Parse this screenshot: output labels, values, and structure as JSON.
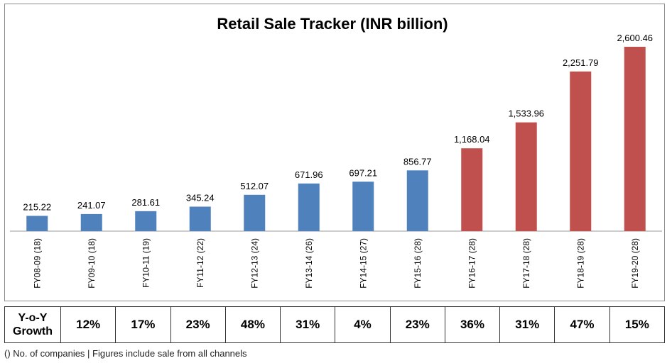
{
  "chart_data": {
    "type": "bar",
    "title": "Retail Sale Tracker (INR billion)",
    "categories": [
      "FY08-09 (18)",
      "FY09-10 (18)",
      "FY10-11 (19)",
      "FY11-12 (22)",
      "FY12-13 (24)",
      "FY13-14 (26)",
      "FY14-15 (27)",
      "FY15-16 (28)",
      "FY16-17 (28)",
      "FY17-18 (28)",
      "FY18-19 (28)",
      "FY19-20 (28)"
    ],
    "values": [
      215.22,
      241.07,
      281.61,
      345.24,
      512.07,
      671.96,
      697.21,
      856.77,
      1168.04,
      1533.96,
      2251.79,
      2600.46
    ],
    "value_labels": [
      "215.22",
      "241.07",
      "281.61",
      "345.24",
      "512.07",
      "671.96",
      "697.21",
      "856.77",
      "1,168.04",
      "1,533.96",
      "2,251.79",
      "2,600.46"
    ],
    "colors": [
      "#4f81bd",
      "#4f81bd",
      "#4f81bd",
      "#4f81bd",
      "#4f81bd",
      "#4f81bd",
      "#4f81bd",
      "#4f81bd",
      "#c0504d",
      "#c0504d",
      "#c0504d",
      "#c0504d"
    ],
    "ylim": [
      0,
      2900
    ],
    "grid": false,
    "legend": "none"
  },
  "growth_table": {
    "header_line1": "Y-o-Y",
    "header_line2": "Growth",
    "values": [
      "12%",
      "17%",
      "23%",
      "48%",
      "31%",
      "4%",
      "23%",
      "36%",
      "31%",
      "47%",
      "15%"
    ]
  },
  "footnote": "() No. of companies | Figures include sale from all channels"
}
